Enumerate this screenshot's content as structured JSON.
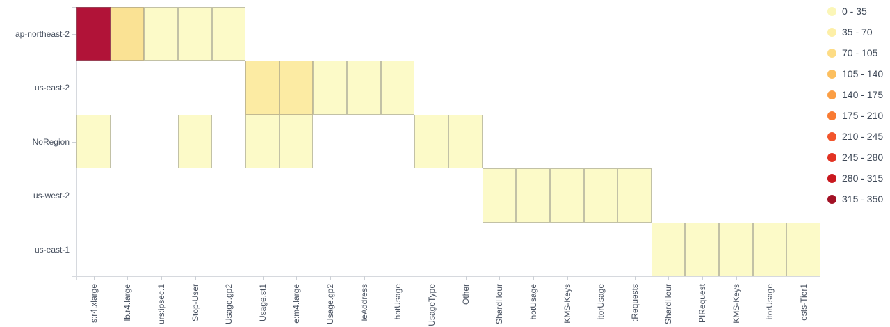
{
  "chart_data": {
    "type": "heatmap",
    "title": "",
    "x_categories": [
      "s:r4.xlarge",
      "lb.r4.large",
      "urs:ipsec.1",
      "Stop-User",
      "Usage.gp2",
      "Usage.st1",
      "e:m4.large",
      "Usage.gp2",
      "leAddress",
      "hotUsage",
      "UsageType",
      "Other",
      "ShardHour",
      "hotUsage",
      "KMS-Keys",
      "itorUsage",
      ":Requests",
      "ShardHour",
      "PIRequest",
      "KMS-Keys",
      "itorUsage",
      "ests-Tier1"
    ],
    "y_categories": [
      "ap-northeast-2",
      "us-east-2",
      "NoRegion",
      "us-west-2",
      "us-east-1"
    ],
    "value_range": [
      0,
      350
    ],
    "grid": false,
    "legend": {
      "position": "top-right",
      "buckets": [
        {
          "label": "0 - 35",
          "color": "#FBF6B8"
        },
        {
          "label": "35 - 70",
          "color": "#FDEFA7"
        },
        {
          "label": "70 - 105",
          "color": "#FDDC85"
        },
        {
          "label": "105 - 140",
          "color": "#FCBF5F"
        },
        {
          "label": "140 - 175",
          "color": "#FB9E44"
        },
        {
          "label": "175 - 210",
          "color": "#F97B33"
        },
        {
          "label": "210 - 245",
          "color": "#F2552C"
        },
        {
          "label": "245 - 280",
          "color": "#E23323"
        },
        {
          "label": "280 - 315",
          "color": "#C9191F"
        },
        {
          "label": "315 - 350",
          "color": "#A21125"
        }
      ]
    },
    "cells": [
      {
        "row": 0,
        "col": 0,
        "bucket": "315 - 350",
        "value": 330,
        "color": "#B11338"
      },
      {
        "row": 0,
        "col": 1,
        "bucket": "70 - 105",
        "value": 85,
        "color": "#FAE294"
      },
      {
        "row": 0,
        "col": 2,
        "bucket": "0 - 35",
        "value": 15,
        "color": "#FCFAC8"
      },
      {
        "row": 0,
        "col": 3,
        "bucket": "0 - 35",
        "value": 12,
        "color": "#FCFAC8"
      },
      {
        "row": 0,
        "col": 4,
        "bucket": "0 - 35",
        "value": 10,
        "color": "#FCFAC8"
      },
      {
        "row": 1,
        "col": 5,
        "bucket": "35 - 70",
        "value": 60,
        "color": "#FCEBA3"
      },
      {
        "row": 1,
        "col": 6,
        "bucket": "35 - 70",
        "value": 55,
        "color": "#FCEBA3"
      },
      {
        "row": 1,
        "col": 7,
        "bucket": "0 - 35",
        "value": 15,
        "color": "#FCFAC8"
      },
      {
        "row": 1,
        "col": 8,
        "bucket": "0 - 35",
        "value": 12,
        "color": "#FCFAC8"
      },
      {
        "row": 1,
        "col": 9,
        "bucket": "0 - 35",
        "value": 10,
        "color": "#FCFAC8"
      },
      {
        "row": 2,
        "col": 0,
        "bucket": "0 - 35",
        "value": 10,
        "color": "#FCFAC8"
      },
      {
        "row": 2,
        "col": 3,
        "bucket": "0 - 35",
        "value": 10,
        "color": "#FCFAC8"
      },
      {
        "row": 2,
        "col": 5,
        "bucket": "0 - 35",
        "value": 10,
        "color": "#FCFAC8"
      },
      {
        "row": 2,
        "col": 6,
        "bucket": "0 - 35",
        "value": 10,
        "color": "#FCFAC8"
      },
      {
        "row": 2,
        "col": 10,
        "bucket": "0 - 35",
        "value": 10,
        "color": "#FCFAC8"
      },
      {
        "row": 2,
        "col": 11,
        "bucket": "0 - 35",
        "value": 10,
        "color": "#FCFAC8"
      },
      {
        "row": 3,
        "col": 12,
        "bucket": "0 - 35",
        "value": 10,
        "color": "#FCFAC8"
      },
      {
        "row": 3,
        "col": 13,
        "bucket": "0 - 35",
        "value": 10,
        "color": "#FCFAC8"
      },
      {
        "row": 3,
        "col": 14,
        "bucket": "0 - 35",
        "value": 10,
        "color": "#FCFAC8"
      },
      {
        "row": 3,
        "col": 15,
        "bucket": "0 - 35",
        "value": 10,
        "color": "#FCFAC8"
      },
      {
        "row": 3,
        "col": 16,
        "bucket": "0 - 35",
        "value": 10,
        "color": "#FCFAC8"
      },
      {
        "row": 4,
        "col": 17,
        "bucket": "0 - 35",
        "value": 10,
        "color": "#FCFAC8"
      },
      {
        "row": 4,
        "col": 18,
        "bucket": "0 - 35",
        "value": 10,
        "color": "#FCFAC8"
      },
      {
        "row": 4,
        "col": 19,
        "bucket": "0 - 35",
        "value": 10,
        "color": "#FCFAC8"
      },
      {
        "row": 4,
        "col": 20,
        "bucket": "0 - 35",
        "value": 10,
        "color": "#FCFAC8"
      },
      {
        "row": 4,
        "col": 21,
        "bucket": "0 - 35",
        "value": 10,
        "color": "#FCFAC8"
      }
    ]
  }
}
